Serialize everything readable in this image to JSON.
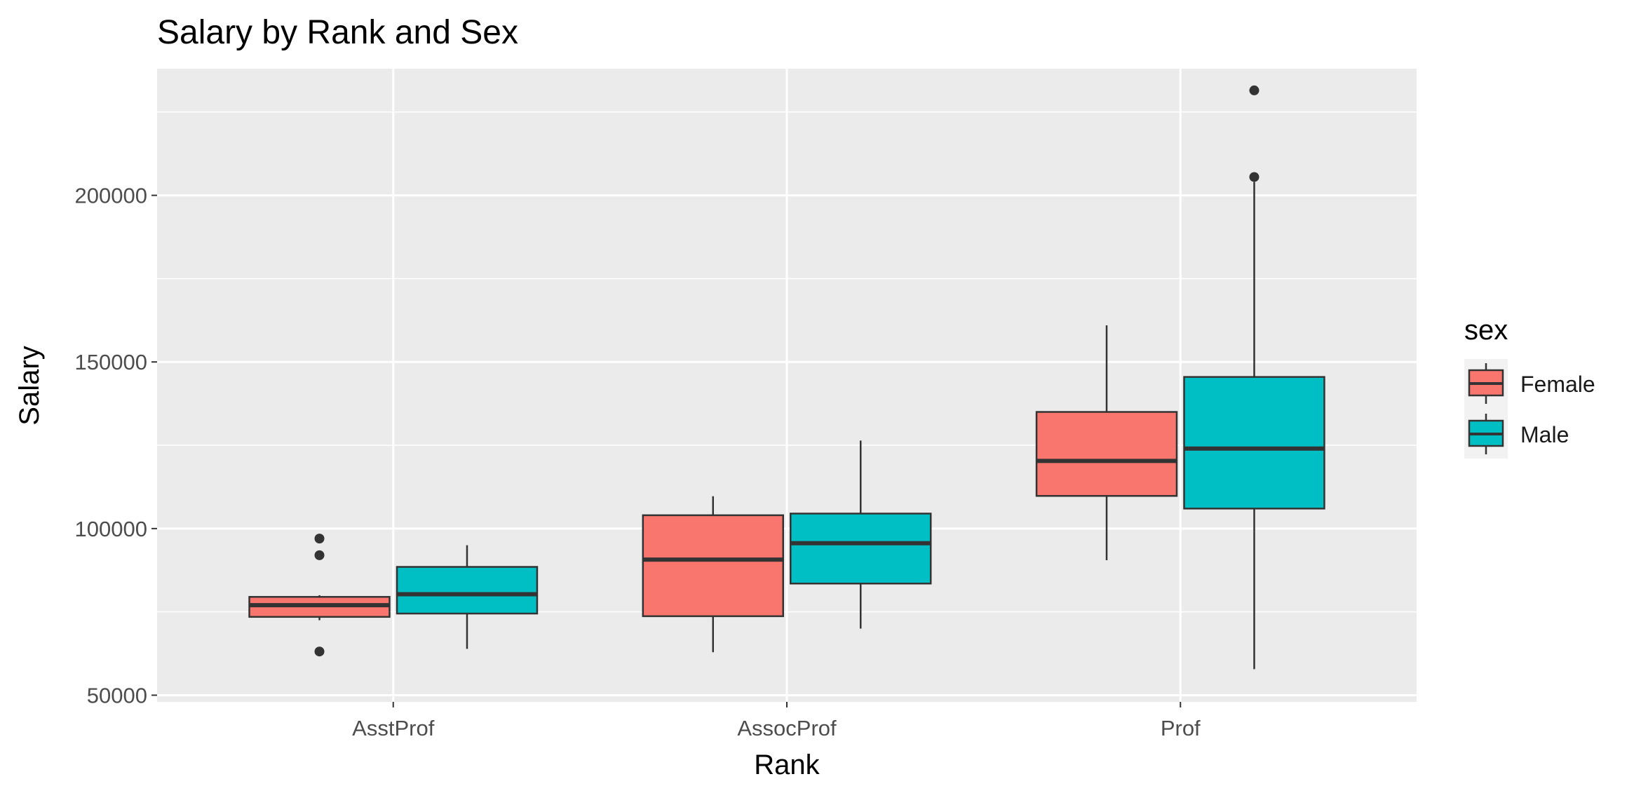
{
  "chart_data": {
    "type": "boxplot",
    "title": "Salary by Rank and Sex",
    "xlabel": "Rank",
    "ylabel": "Salary",
    "categories": [
      "AsstProf",
      "AssocProf",
      "Prof"
    ],
    "ylim": [
      48000,
      238000
    ],
    "yticks": [
      50000,
      100000,
      150000,
      200000
    ],
    "ytick_labels": [
      "50000",
      "100000",
      "150000",
      "200000"
    ],
    "grid": true,
    "legend": {
      "title": "sex",
      "position": "right"
    },
    "series": [
      {
        "name": "Female",
        "color": "#F8766D",
        "boxes": [
          {
            "category": "AsstProf",
            "min": 72500,
            "q1": 73500,
            "median": 77000,
            "q3": 79500,
            "max": 80000,
            "outliers": [
              97000,
              92000,
              63100
            ]
          },
          {
            "category": "AssocProf",
            "min": 62900,
            "q1": 73700,
            "median": 90700,
            "q3": 104000,
            "max": 109700,
            "outliers": []
          },
          {
            "category": "Prof",
            "min": 90500,
            "q1": 109800,
            "median": 120300,
            "q3": 135000,
            "max": 161000,
            "outliers": []
          }
        ]
      },
      {
        "name": "Male",
        "color": "#00BFC4",
        "boxes": [
          {
            "category": "AsstProf",
            "min": 63900,
            "q1": 74500,
            "median": 80300,
            "q3": 88500,
            "max": 95000,
            "outliers": []
          },
          {
            "category": "AssocProf",
            "min": 70000,
            "q1": 83500,
            "median": 95600,
            "q3": 104500,
            "max": 126400,
            "outliers": []
          },
          {
            "category": "Prof",
            "min": 57800,
            "q1": 106000,
            "median": 124000,
            "q3": 145500,
            "max": 204000,
            "outliers": [
              205500,
              231500
            ]
          }
        ]
      }
    ]
  }
}
